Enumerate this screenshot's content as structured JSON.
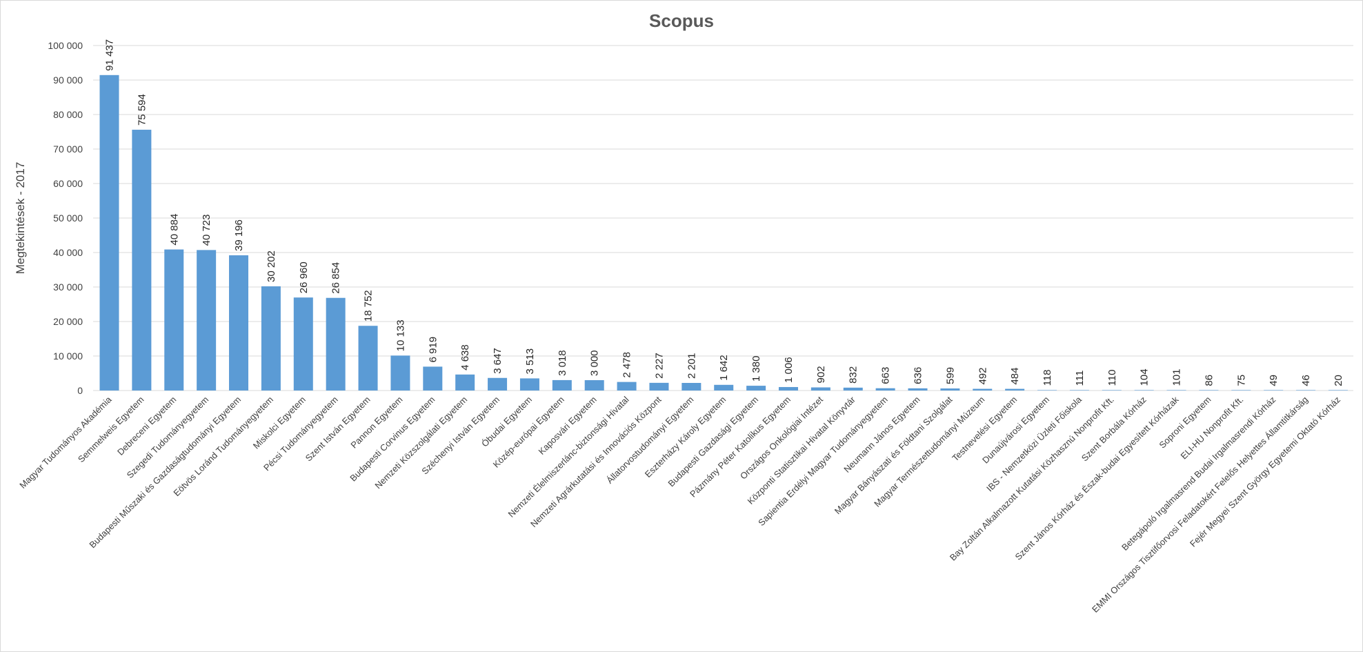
{
  "chart_data": {
    "type": "bar",
    "title": "Scopus",
    "xlabel": "",
    "ylabel": "Megtekintések - 2017",
    "ylim": [
      0,
      100000
    ],
    "ytick_values": [
      0,
      10000,
      20000,
      30000,
      40000,
      50000,
      60000,
      70000,
      80000,
      90000,
      100000
    ],
    "ytick_labels": [
      "0",
      "10 000",
      "20 000",
      "30 000",
      "40 000",
      "50 000",
      "60 000",
      "70 000",
      "80 000",
      "90 000",
      "100 000"
    ],
    "grid": true,
    "legend": "none",
    "bar_color": "#5b9bd5",
    "categories": [
      "Magyar Tudományos Akadémia",
      "Semmelweis Egyetem",
      "Debreceni Egyetem",
      "Szegedi Tudományegyetem",
      "Budapesti Műszaki és Gazdaságtudományi Egyetem",
      "Eötvös Loránd Tudományegyetem",
      "Miskolci Egyetem",
      "Pécsi Tudományegyetem",
      "Szent István Egyetem",
      "Pannon Egyetem",
      "Budapesti Corvinus Egyetem",
      "Nemzeti Közszolgálati Egyetem",
      "Széchenyi István Egyetem",
      "Óbudai Egyetem",
      "Közép-európai Egyetem",
      "Kaposvári Egyetem",
      "Nemzeti Élelmiszerlánc-biztonsági Hivatal",
      "Nemzeti Agrárkutatási és Innovációs Központ",
      "Állatorvostudományi Egyetem",
      "Eszterházy Károly Egyetem",
      "Budapesti Gazdasági Egyetem",
      "Pázmány Péter Katolikus Egyetem",
      "Országos Onkológiai Intézet",
      "Központi Statisztikai Hivatal Könyvtár",
      "Sapientia Erdélyi Magyar Tudományegyetem",
      "Neumann János Egyetem",
      "Magyar Bányászati és Földtani Szolgálat",
      "Magyar Természettudományi Múzeum",
      "Testnevelési Egyetem",
      "Dunaújvárosi Egyetem",
      "IBS - Nemzetközi Üzleti Főiskola",
      "Bay Zoltán Alkalmazott Kutatási Közhasznú Nonprofit Kft.",
      "Szent Borbála Kórház",
      "Szent János Kórház és Észak-budai Egyesített Kórházak",
      "Soproni Egyetem",
      "ELI-HU Nonprofit Kft.",
      "Betegápoló Irgalmasrend Budai Irgalmasrendi Kórház",
      "EMMI Országos Tisztifőorvosi Feladatokért Felelős Helyettes Államtitkárság",
      "Fejér Megyei Szent György Egyetemi Oktató Kórház"
    ],
    "values": [
      91437,
      75594,
      40884,
      40723,
      39196,
      30202,
      26960,
      26854,
      18752,
      10133,
      6919,
      4638,
      3647,
      3513,
      3018,
      3000,
      2478,
      2227,
      2201,
      1642,
      1380,
      1006,
      902,
      832,
      663,
      636,
      599,
      492,
      484,
      118,
      111,
      110,
      104,
      101,
      86,
      75,
      49,
      46,
      20
    ],
    "data_labels": [
      "91 437",
      "75 594",
      "40 884",
      "40 723",
      "39 196",
      "30 202",
      "26 960",
      "26 854",
      "18 752",
      "10 133",
      "6 919",
      "4 638",
      "3 647",
      "3 513",
      "3 018",
      "3 000",
      "2 478",
      "2 227",
      "2 201",
      "1 642",
      "1 380",
      "1 006",
      "902",
      "832",
      "663",
      "636",
      "599",
      "492",
      "484",
      "118",
      "111",
      "110",
      "104",
      "101",
      "86",
      "75",
      "49",
      "46",
      "20"
    ]
  }
}
